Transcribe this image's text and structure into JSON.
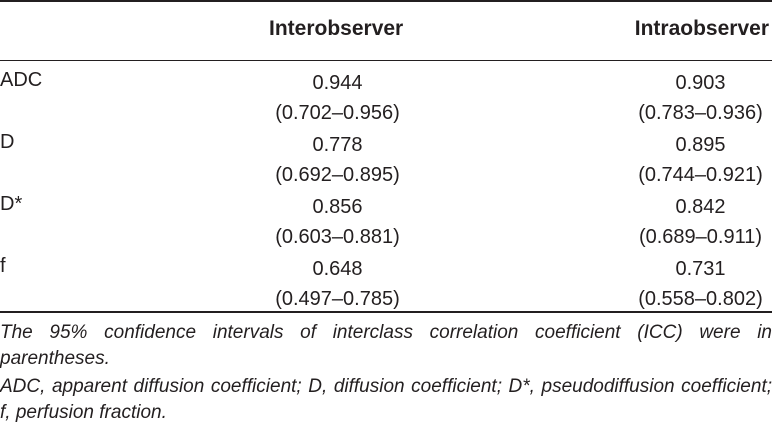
{
  "table": {
    "headers": [
      "",
      "Interobserver",
      "Intraobserver"
    ],
    "rows": [
      {
        "parameter": "ADC",
        "interobserver": {
          "value": "0.944",
          "ci": "(0.702–0.956)"
        },
        "intraobserver": {
          "value": "0.903",
          "ci": "(0.783–0.936)"
        }
      },
      {
        "parameter": "D",
        "interobserver": {
          "value": "0.778",
          "ci": "(0.692–0.895)"
        },
        "intraobserver": {
          "value": "0.895",
          "ci": "(0.744–0.921)"
        }
      },
      {
        "parameter": "D*",
        "interobserver": {
          "value": "0.856",
          "ci": "(0.603–0.881)"
        },
        "intraobserver": {
          "value": "0.842",
          "ci": "(0.689–0.911)"
        }
      },
      {
        "parameter": "f",
        "interobserver": {
          "value": "0.648",
          "ci": "(0.497–0.785)"
        },
        "intraobserver": {
          "value": "0.731",
          "ci": "(0.558–0.802)"
        }
      }
    ]
  },
  "footnotes": {
    "note1": "The 95% confidence intervals of interclass correlation coefficient (ICC) were in parentheses.",
    "note2": "ADC, apparent diffusion coefficient; D, diffusion coefficient; D*, pseudodiffusion coefficient; f, perfusion fraction."
  }
}
